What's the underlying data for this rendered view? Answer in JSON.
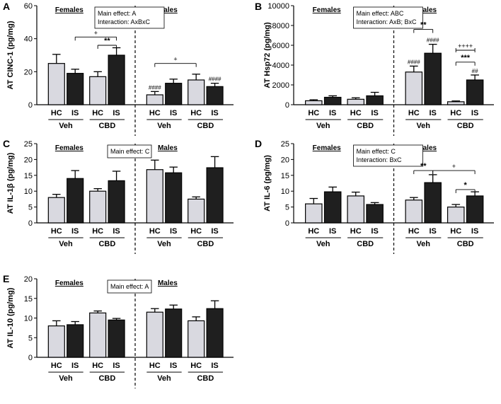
{
  "colors": {
    "hc": "#d9d9e0",
    "is": "#1f1f1f"
  },
  "chart_data": [
    {
      "panel": "A",
      "type": "bar",
      "ylabel": "AT CINC-1 (pg/mg)",
      "ylim": [
        0,
        60
      ],
      "yticks": [
        0,
        20,
        40,
        60
      ],
      "groups": [
        "Females",
        "Males"
      ],
      "conditions": [
        "HC",
        "IS"
      ],
      "treatments": [
        "Veh",
        "CBD"
      ],
      "categories": [
        "F-Veh-HC",
        "F-Veh-IS",
        "F-CBD-HC",
        "F-CBD-IS",
        "M-Veh-HC",
        "M-Veh-IS",
        "M-CBD-HC",
        "M-CBD-IS"
      ],
      "values": [
        25,
        19,
        17,
        30,
        6,
        13,
        15,
        11
      ],
      "errors": [
        5.5,
        2.5,
        3,
        4.5,
        2,
        2.5,
        3.5,
        2
      ],
      "stats_box": [
        "Main effect: A",
        "Interaction: AxBxC"
      ],
      "annotations": [
        "+",
        "**",
        "####",
        "+",
        "####"
      ]
    },
    {
      "panel": "B",
      "type": "bar",
      "ylabel": "AT Hsp72 (pg/mg)",
      "ylim": [
        0,
        10000
      ],
      "yticks": [
        0,
        2000,
        4000,
        6000,
        8000,
        10000
      ],
      "groups": [
        "Females",
        "Males"
      ],
      "conditions": [
        "HC",
        "IS"
      ],
      "treatments": [
        "Veh",
        "CBD"
      ],
      "categories": [
        "F-Veh-HC",
        "F-Veh-IS",
        "F-CBD-HC",
        "F-CBD-IS",
        "M-Veh-HC",
        "M-Veh-IS",
        "M-CBD-HC",
        "M-CBD-IS"
      ],
      "values": [
        400,
        750,
        550,
        900,
        3300,
        5200,
        300,
        2500
      ],
      "errors": [
        100,
        150,
        150,
        350,
        600,
        900,
        80,
        500
      ],
      "stats_box": [
        "Main effect: ABC",
        "Interaction: AxB; BxC"
      ],
      "annotations": [
        "**",
        "####",
        "####",
        "++++",
        "***",
        "##"
      ]
    },
    {
      "panel": "C",
      "type": "bar",
      "ylabel": "AT IL-1β (pg/mg)",
      "ylim": [
        0,
        25
      ],
      "yticks": [
        0,
        5,
        10,
        15,
        20,
        25
      ],
      "groups": [
        "Females",
        "Males"
      ],
      "conditions": [
        "HC",
        "IS"
      ],
      "treatments": [
        "Veh",
        "CBD"
      ],
      "categories": [
        "F-Veh-HC",
        "F-Veh-IS",
        "F-CBD-HC",
        "F-CBD-IS",
        "M-Veh-HC",
        "M-Veh-IS",
        "M-CBD-HC",
        "M-CBD-IS"
      ],
      "values": [
        8,
        14,
        10,
        13.3,
        16.8,
        15.8,
        7.5,
        17.4
      ],
      "errors": [
        1,
        2.5,
        0.8,
        3,
        3,
        1.8,
        0.7,
        3.5
      ],
      "stats_box": [
        "Main effect: C"
      ],
      "annotations": []
    },
    {
      "panel": "D",
      "type": "bar",
      "ylabel": "AT IL-6 (pg/mg)",
      "ylim": [
        0,
        25
      ],
      "yticks": [
        0,
        5,
        10,
        15,
        20,
        25
      ],
      "groups": [
        "Females",
        "Males"
      ],
      "conditions": [
        "HC",
        "IS"
      ],
      "treatments": [
        "Veh",
        "CBD"
      ],
      "categories": [
        "F-Veh-HC",
        "F-Veh-IS",
        "F-CBD-HC",
        "F-CBD-IS",
        "M-Veh-HC",
        "M-Veh-IS",
        "M-CBD-HC",
        "M-CBD-IS"
      ],
      "values": [
        6,
        9.8,
        8.5,
        5.8,
        7.2,
        12.7,
        5,
        8.5
      ],
      "errors": [
        1.7,
        1.5,
        1.2,
        0.6,
        0.8,
        2.5,
        0.8,
        1.3
      ],
      "stats_box": [
        "Main effect: C",
        "Interaction: BxC"
      ],
      "annotations": [
        "**",
        "+",
        "*"
      ]
    },
    {
      "panel": "E",
      "type": "bar",
      "ylabel": "AT IL-10 (pg/mg)",
      "ylim": [
        0,
        20
      ],
      "yticks": [
        0,
        5,
        10,
        15,
        20
      ],
      "groups": [
        "Females",
        "Males"
      ],
      "conditions": [
        "HC",
        "IS"
      ],
      "treatments": [
        "Veh",
        "CBD"
      ],
      "categories": [
        "F-Veh-HC",
        "F-Veh-IS",
        "F-CBD-HC",
        "F-CBD-IS",
        "M-Veh-HC",
        "M-Veh-IS",
        "M-CBD-HC",
        "M-CBD-IS"
      ],
      "values": [
        8,
        8.3,
        11.3,
        9.5,
        11.5,
        12.3,
        9.3,
        12.4
      ],
      "errors": [
        1.3,
        0.8,
        0.5,
        0.4,
        0.9,
        1,
        1,
        2
      ],
      "stats_box": [
        "Main effect: A"
      ],
      "annotations": []
    }
  ]
}
